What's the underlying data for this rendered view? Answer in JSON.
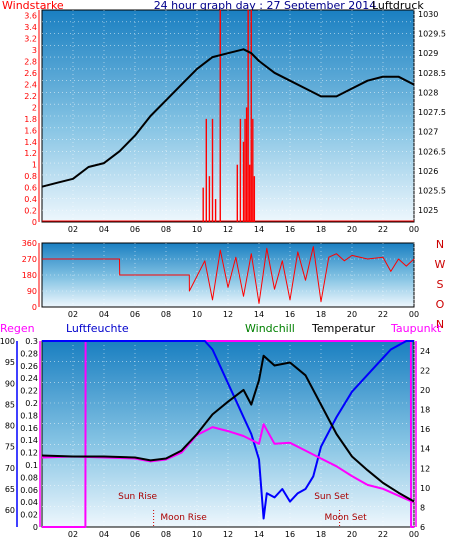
{
  "chart_data": [
    {
      "id": "wind-pressure",
      "type": "line",
      "title": "24 hour graph day : 27 September 2014",
      "left_axis_title": "Windstarke",
      "right_axis_title": "Luftdruck",
      "x_ticks": [
        "02",
        "04",
        "06",
        "08",
        "10",
        "12",
        "14",
        "16",
        "18",
        "20",
        "22",
        "00"
      ],
      "left_ticks": [
        "0",
        "0.2",
        "0.4",
        "0.6",
        "0.8",
        "1",
        "1.2",
        "1.4",
        "1.6",
        "1.8",
        "2",
        "2.2",
        "2.4",
        "2.6",
        "2.8",
        "3",
        "3.2",
        "3.4",
        "3.6"
      ],
      "right_ticks": [
        "1025",
        "1025.5",
        "1026",
        "1026.5",
        "1027",
        "1027.5",
        "1028",
        "1028.5",
        "1029",
        "1029.5",
        "1030"
      ],
      "left_range": [
        0,
        3.7
      ],
      "right_range": [
        1024.7,
        1030.1
      ],
      "x_range": [
        0,
        24
      ],
      "pressure_series": {
        "color": "#000000",
        "x": [
          0,
          1,
          2,
          3,
          4,
          5,
          6,
          7,
          8,
          9,
          10,
          11,
          12,
          13,
          13.5,
          14,
          15,
          16,
          17,
          18,
          19,
          20,
          21,
          22,
          23,
          24
        ],
        "y": [
          1025.6,
          1025.7,
          1025.8,
          1026.1,
          1026.2,
          1026.5,
          1026.9,
          1027.4,
          1027.8,
          1028.2,
          1028.6,
          1028.9,
          1029.0,
          1029.1,
          1029.0,
          1028.8,
          1028.5,
          1028.3,
          1028.1,
          1027.9,
          1027.9,
          1028.1,
          1028.3,
          1028.4,
          1028.4,
          1028.2
        ]
      },
      "wind_series": {
        "color": "#ff0000",
        "x": [
          10.4,
          10.6,
          10.8,
          11.0,
          11.2,
          11.5,
          12.6,
          12.8,
          13.0,
          13.1,
          13.2,
          13.3,
          13.4,
          13.5,
          13.6,
          13.7
        ],
        "y": [
          0.6,
          1.8,
          0.8,
          1.8,
          0.4,
          3.7,
          1.0,
          1.8,
          1.4,
          1.8,
          2.0,
          3.7,
          1.0,
          3.7,
          1.8,
          0.8
        ]
      }
    },
    {
      "id": "wind-direction",
      "type": "line",
      "x_ticks": [
        "02",
        "04",
        "06",
        "08",
        "10",
        "12",
        "14",
        "16",
        "18",
        "20",
        "22",
        "00"
      ],
      "left_ticks": [
        "0",
        "90",
        "180",
        "270",
        "360"
      ],
      "right_labels": [
        "N",
        "W",
        "S",
        "O",
        "N"
      ],
      "left_range": [
        0,
        360
      ],
      "x_range": [
        0,
        24
      ],
      "series": {
        "color": "#ff0000",
        "x": [
          0,
          5,
          5.01,
          9.5,
          9.51,
          10.5,
          11,
          11.5,
          12,
          12.5,
          13,
          13.5,
          14,
          14.5,
          15,
          15.5,
          16,
          16.5,
          17,
          17.5,
          18,
          18.5,
          19,
          19.5,
          20,
          21,
          22,
          22.5,
          23,
          23.5,
          24
        ],
        "y": [
          270,
          270,
          180,
          180,
          90,
          260,
          40,
          320,
          110,
          280,
          60,
          300,
          20,
          330,
          100,
          260,
          40,
          310,
          150,
          340,
          30,
          280,
          300,
          260,
          290,
          270,
          280,
          200,
          270,
          230,
          270
        ]
      }
    },
    {
      "id": "humidity-temperature",
      "type": "line",
      "labels": [
        "Regen",
        "Luftfeuchte",
        "Windchill",
        "Temperatur",
        "Taupunkt"
      ],
      "x_ticks": [
        "02",
        "04",
        "06",
        "08",
        "10",
        "12",
        "14",
        "16",
        "18",
        "20",
        "22",
        "00"
      ],
      "humidity_ticks": [
        "60",
        "65",
        "70",
        "75",
        "80",
        "85",
        "90",
        "95",
        "100"
      ],
      "rain_ticks": [
        "0",
        "0.02",
        "0.04",
        "0.06",
        "0.08",
        "0.1",
        "0.12",
        "0.14",
        "0.16",
        "0.18",
        "0.2",
        "0.22",
        "0.24",
        "0.26",
        "0.28",
        "0.3"
      ],
      "temp_ticks": [
        "6",
        "8",
        "10",
        "12",
        "14",
        "16",
        "18",
        "20",
        "22",
        "24"
      ],
      "humidity_range": [
        56,
        100
      ],
      "temp_range": [
        6,
        25
      ],
      "x_range": [
        0,
        24
      ],
      "annotations": [
        {
          "text": "Sun Rise",
          "x": 7.2
        },
        {
          "text": "Moon Rise",
          "x": 7.2
        },
        {
          "text": "Sun Set",
          "x": 19.2
        },
        {
          "text": "Moon Set",
          "x": 19.2
        }
      ],
      "temperature": {
        "color": "#000000",
        "x": [
          0,
          2,
          4,
          6,
          7,
          8,
          9,
          10,
          11,
          12,
          13,
          13.5,
          14,
          14.3,
          15,
          16,
          17,
          18,
          19,
          20,
          21,
          22,
          23,
          24
        ],
        "y": [
          13.3,
          13.2,
          13.2,
          13.1,
          12.8,
          13.0,
          13.8,
          15.5,
          17.5,
          18.8,
          20,
          18.5,
          21,
          23.5,
          22.5,
          22.8,
          21.5,
          18.5,
          15.5,
          13.2,
          11.8,
          10.5,
          9.5,
          8.6
        ]
      },
      "dewpoint": {
        "color": "#ff00ff",
        "x": [
          0,
          2,
          4,
          6,
          7,
          8,
          9,
          10,
          11,
          12,
          13,
          14,
          14.3,
          15,
          16,
          17,
          18,
          19,
          20,
          21,
          22,
          23,
          24
        ],
        "y": [
          13.1,
          13.2,
          13.1,
          13.0,
          12.7,
          12.9,
          13.6,
          15.4,
          16.2,
          15.8,
          15.3,
          14.5,
          16.5,
          14.5,
          14.6,
          13.8,
          13.0,
          12.2,
          11.2,
          10.3,
          9.9,
          9.2,
          8.5
        ]
      },
      "humidity": {
        "color": "#0000ff",
        "x": [
          0,
          1,
          3,
          5,
          7,
          9,
          10.5,
          11,
          11.5,
          12,
          12.5,
          13,
          13.5,
          14,
          14.3,
          14.5,
          15,
          15.5,
          16,
          16.5,
          17,
          17.5,
          18,
          19,
          20,
          21,
          22,
          22.5,
          23.5,
          24
        ],
        "y": [
          100,
          100,
          100,
          100,
          100,
          100,
          100,
          98,
          94,
          90,
          86,
          82,
          78,
          72,
          58,
          64,
          63,
          65,
          62,
          64,
          65,
          68,
          75,
          82,
          88,
          92,
          96,
          98,
          100,
          100
        ]
      },
      "rain": {
        "color": "#ff00ff",
        "x": [
          0,
          2.8,
          2.81,
          23.8,
          23.81,
          24
        ],
        "y": [
          0,
          0,
          0.3,
          0.3,
          0,
          0
        ]
      }
    }
  ]
}
